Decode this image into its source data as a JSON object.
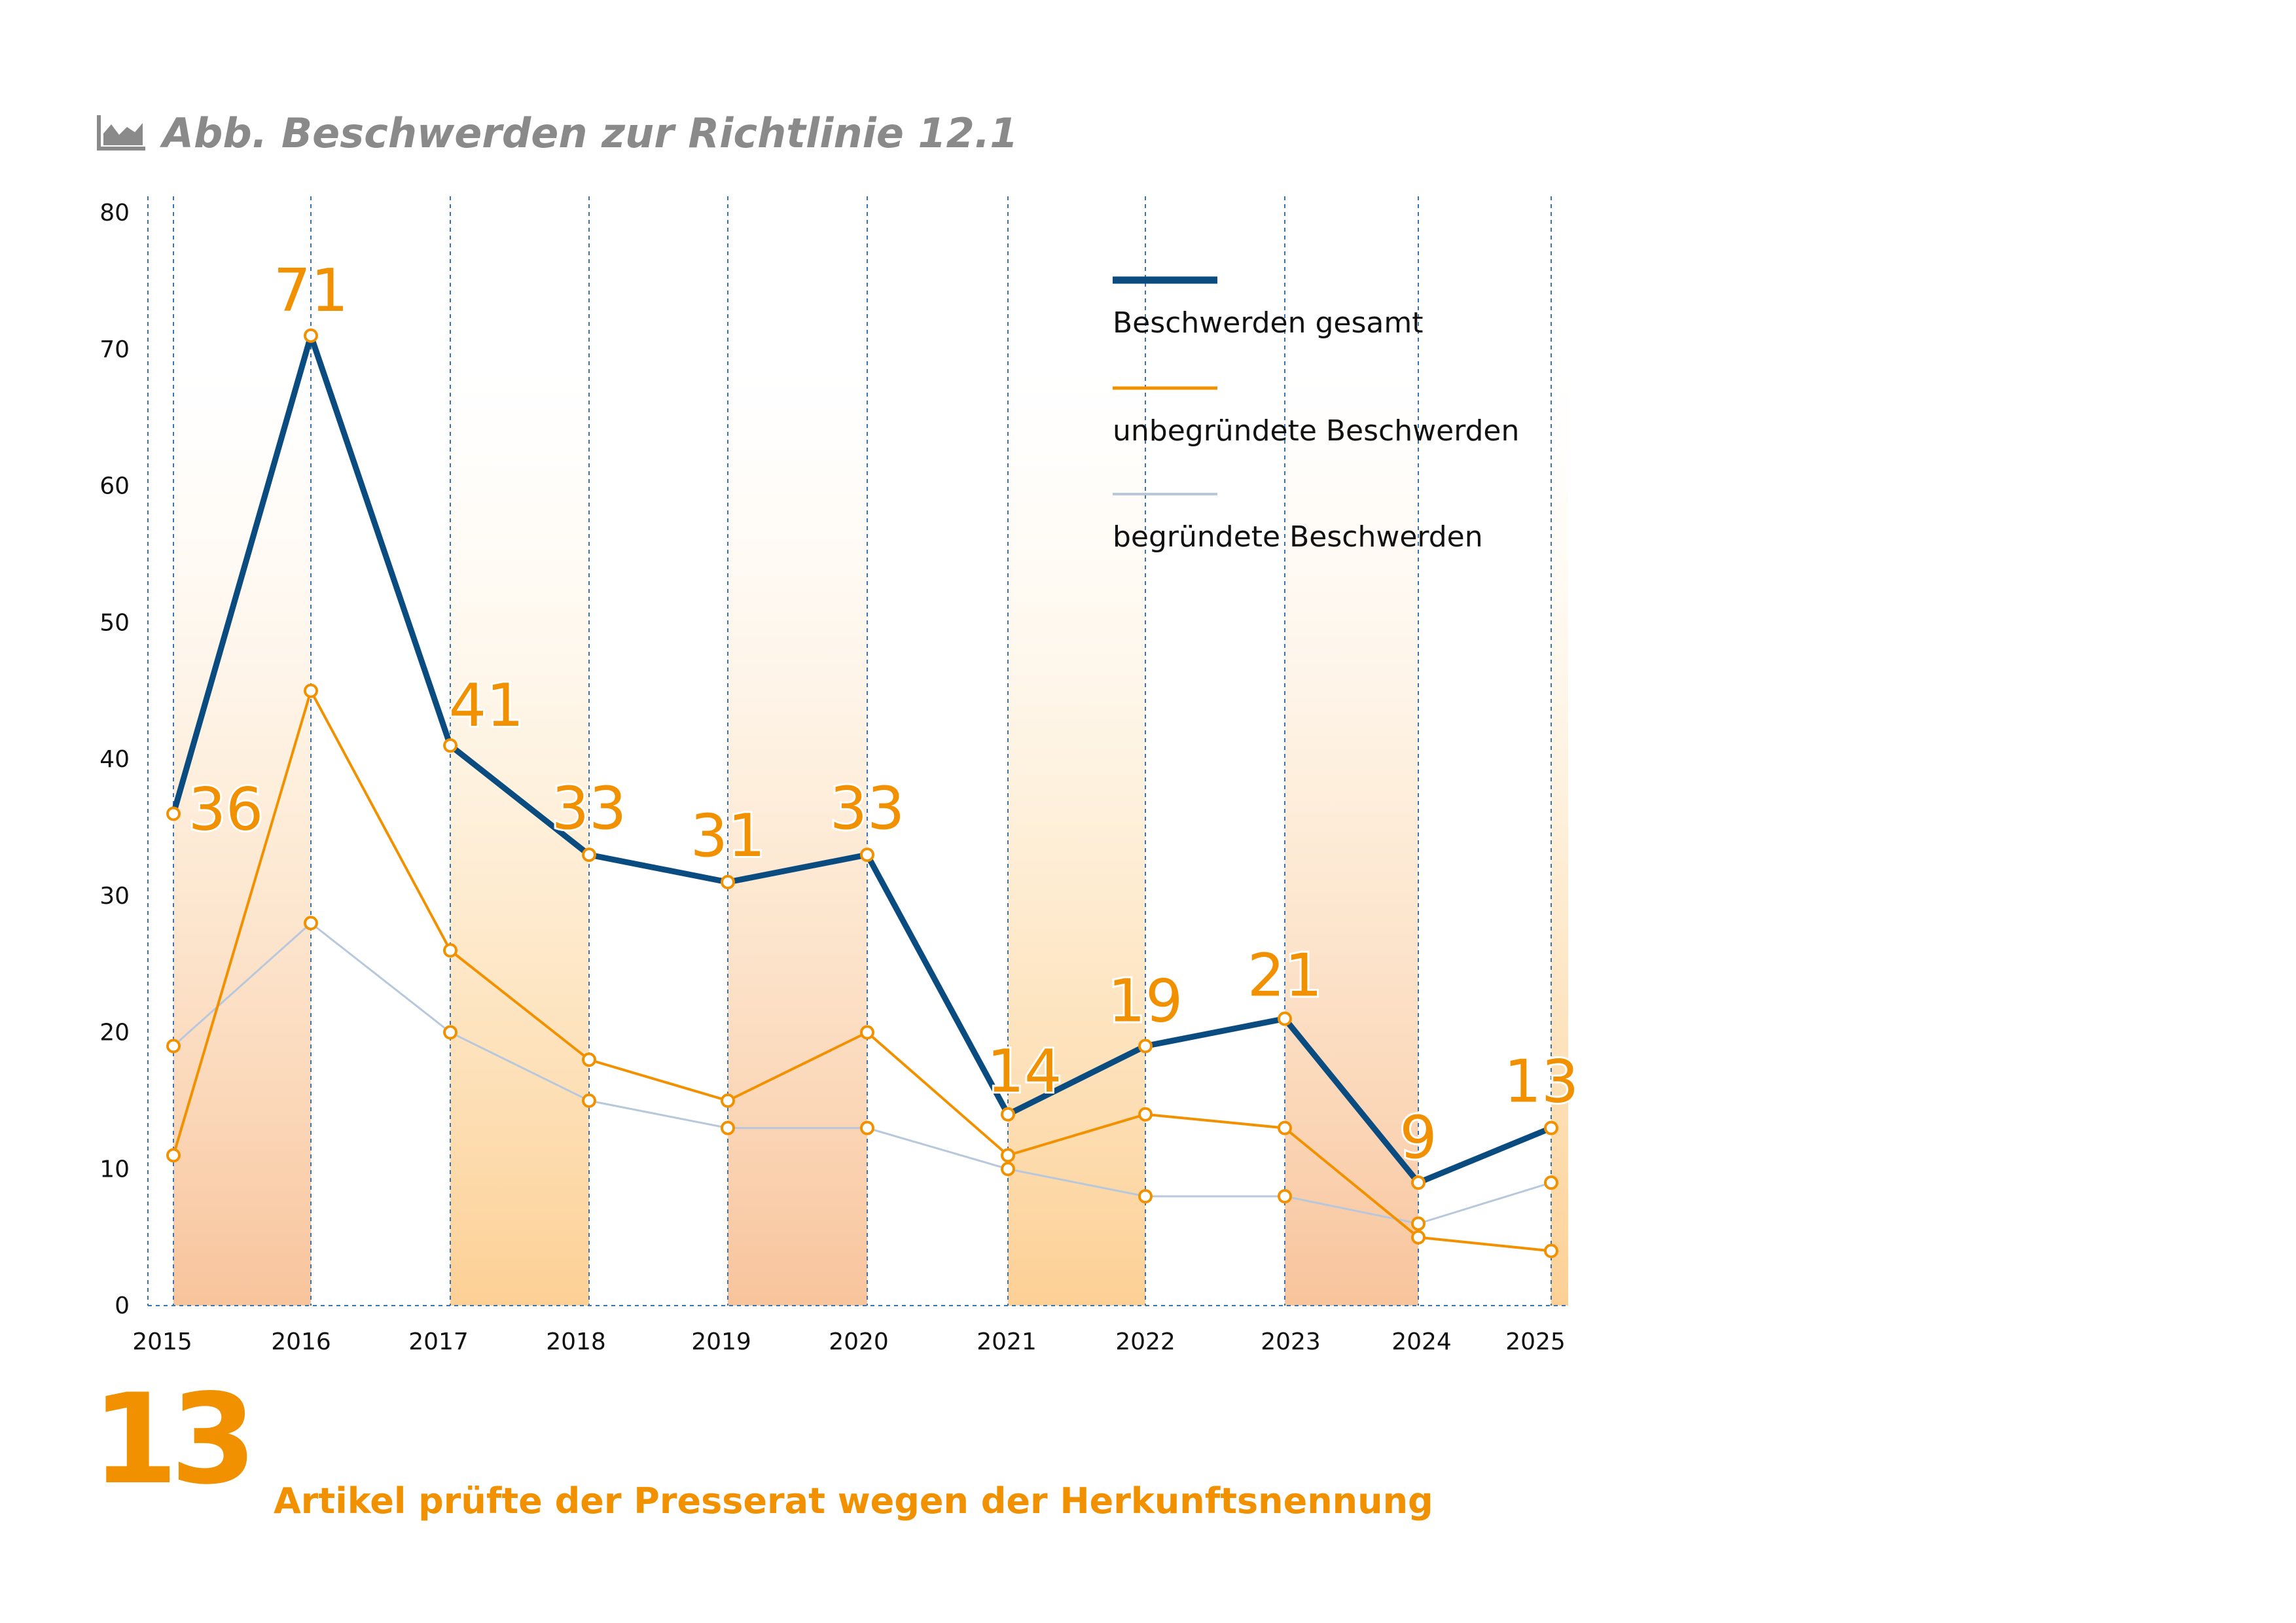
{
  "header": {
    "title": "Abb. Beschwerden zur Richtlinie 12.1",
    "icon": "area-chart-icon"
  },
  "kpi": {
    "number": "13",
    "text": "Artikel prüfte der Presserat wegen der Herkunftsnennung"
  },
  "colors": {
    "total": "#0a4c80",
    "unfounded": "#f29100",
    "founded": "#b8c8dc",
    "label": "#f29100",
    "grid": "#3b74b0"
  },
  "chart_data": {
    "type": "line",
    "x": [
      "2015",
      "2016",
      "2017",
      "2018",
      "2019",
      "2020",
      "2021",
      "2022",
      "2023",
      "2024",
      "2025"
    ],
    "ylim": [
      0,
      80
    ],
    "yticks": [
      0,
      10,
      20,
      30,
      40,
      50,
      60,
      70,
      80
    ],
    "legend_position": "top-right",
    "series": [
      {
        "name": "Beschwerden gesamt",
        "values": [
          36,
          71,
          41,
          33,
          31,
          33,
          14,
          19,
          21,
          9,
          13
        ],
        "labels": [
          "36",
          "71",
          "41",
          "33",
          "31",
          "33",
          "14",
          "19",
          "21",
          "9",
          "13"
        ]
      },
      {
        "name": "unbegründete Beschwerden",
        "values": [
          11,
          45,
          26,
          18,
          15,
          20,
          11,
          14,
          13,
          5,
          4
        ]
      },
      {
        "name": "begründete Beschwerden",
        "values": [
          19,
          28,
          20,
          15,
          13,
          13,
          10,
          8,
          8,
          6,
          9
        ]
      }
    ]
  }
}
